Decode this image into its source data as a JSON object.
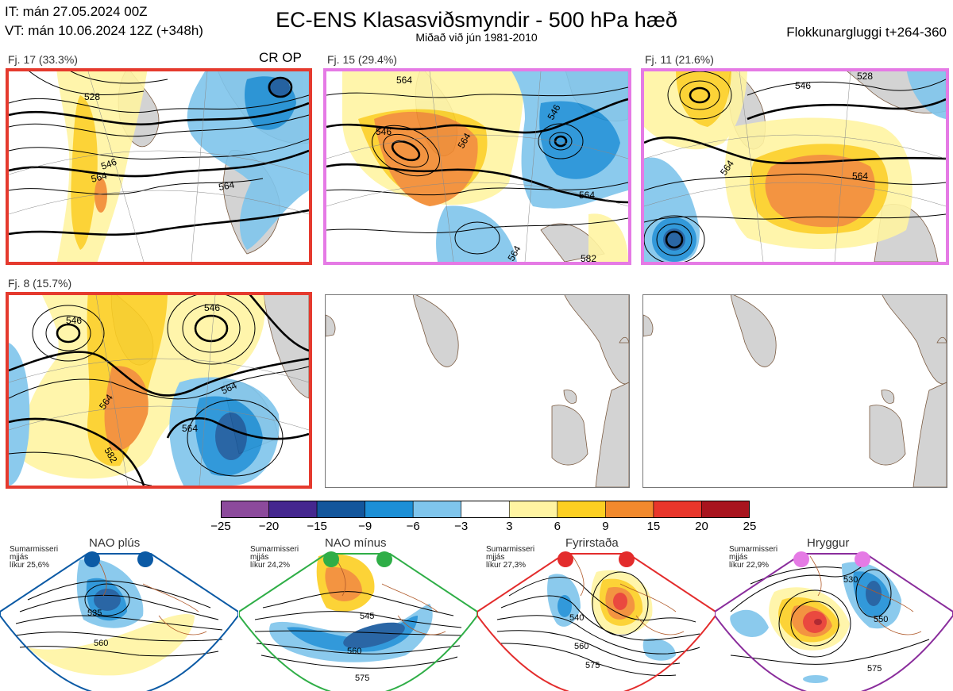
{
  "header": {
    "it_line": "IT: mán 27.05.2024 00Z",
    "vt_line": "VT: mán 10.06.2024 12Z  (+348h)",
    "title": "EC-ENS Klasasviðsmyndir - 500 hPa hæð",
    "subtitle": "Miðað við jún 1981-2010",
    "window": "Flokkunargluggi t+264-360"
  },
  "clusters": [
    {
      "label": "Fj. 17 (33.3%)",
      "tag": "CR OP",
      "frame_color": "#e53a2e",
      "contours": [
        "546",
        "564",
        "528",
        "564"
      ]
    },
    {
      "label": "Fj. 15 (29.4%)",
      "tag": "",
      "frame_color": "#e57ae5",
      "contours": [
        "564",
        "546",
        "564",
        "546",
        "564",
        "582",
        "564"
      ]
    },
    {
      "label": "Fj. 11 (21.6%)",
      "tag": "",
      "frame_color": "#e57ae5",
      "contours": [
        "546",
        "528",
        "564",
        "564"
      ]
    },
    {
      "label": "Fj. 8 (15.7%)",
      "tag": "",
      "frame_color": "#e53a2e",
      "contours": [
        "546",
        "546",
        "564",
        "564",
        "564",
        "582"
      ]
    }
  ],
  "colorbar": {
    "ticks": [
      "−25",
      "−20",
      "−15",
      "−9",
      "−6",
      "−3",
      "3",
      "6",
      "9",
      "15",
      "20",
      "25"
    ],
    "colors": [
      "#8c4a9c",
      "#45278f",
      "#13569c",
      "#1c8fd6",
      "#7fc5ec",
      "#ffffff",
      "#fff4a2",
      "#fccf22",
      "#f2892d",
      "#e8362b",
      "#a8141e"
    ]
  },
  "regimes": [
    {
      "name": "NAO plús",
      "line1": "Sumarmisseri",
      "line2": "mjjás",
      "line3": "líkur 25,6%",
      "color": "#0b5aa5",
      "contours": [
        "535",
        "560"
      ]
    },
    {
      "name": "NAO mínus",
      "line1": "Sumarmisseri",
      "line2": "mjjás",
      "line3": "líkur 24,2%",
      "color": "#2fae47",
      "contours": [
        "545",
        "560",
        "575"
      ]
    },
    {
      "name": "Fyrirstaða",
      "line1": "Sumarmisseri",
      "line2": "mjjás",
      "line3": "líkur 27,3%",
      "color": "#e32c2c",
      "contours": [
        "540",
        "560",
        "575"
      ]
    },
    {
      "name": "Hryggur",
      "line1": "Sumarmisseri",
      "line2": "mjjás",
      "line3": "líkur 22,9%",
      "color": "#e57ae5",
      "contours": [
        "530",
        "550",
        "575"
      ]
    }
  ]
}
